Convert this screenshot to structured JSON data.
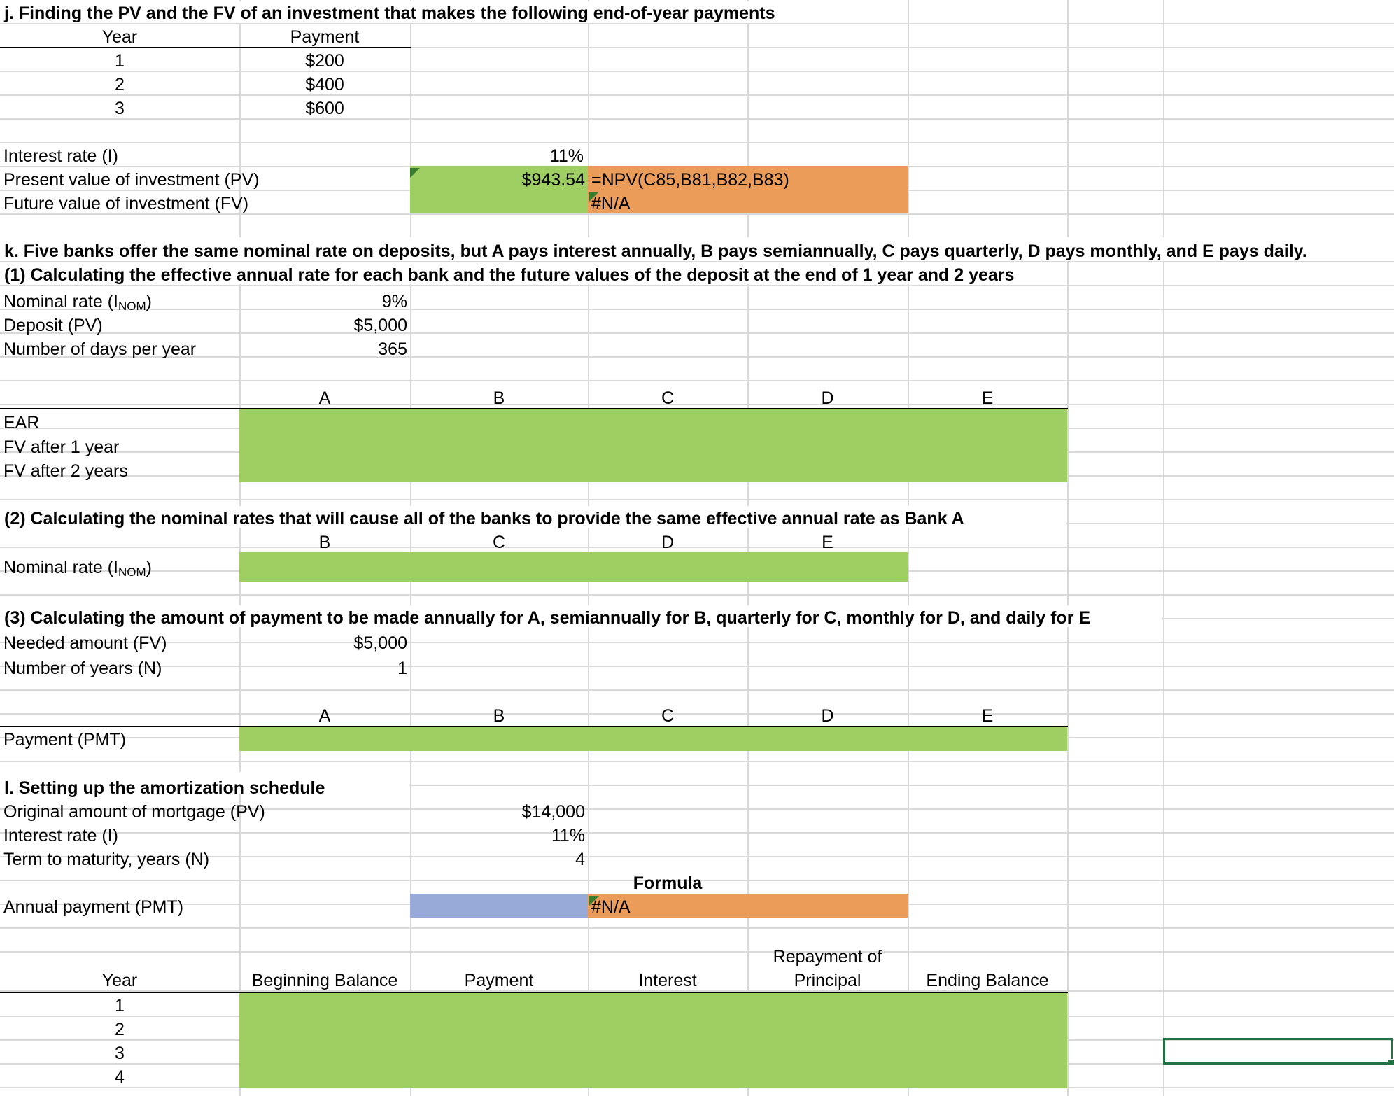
{
  "sheet": {
    "colors": {
      "green": "#9fcf63",
      "orange": "#eb9c59",
      "blue": "#98aad7",
      "gridline": "#d9d9d9",
      "selection": "#217346"
    },
    "j": {
      "title": "j.  Finding the PV and the FV of an investment that makes the following end-of-year payments",
      "year_header": "Year",
      "payment_header": "Payment",
      "rows": [
        {
          "year": "1",
          "payment": "$200"
        },
        {
          "year": "2",
          "payment": "$400"
        },
        {
          "year": "3",
          "payment": "$600"
        }
      ],
      "interest_label": "Interest rate (I)",
      "interest_value": "11%",
      "pv_label": "Present value of investment (PV)",
      "pv_value": "$943.54",
      "pv_formula": "=NPV(C85,B81,B82,B83)",
      "fv_label": "Future value of investment (FV)",
      "fv_value": "#N/A"
    },
    "k": {
      "title": "k.  Five banks offer the same nominal rate on deposits, but A pays interest annually, B pays semiannually, C pays quarterly, D pays monthly, and E pays daily.",
      "part1_title": "(1)  Calculating the effective annual rate for each bank and the future values of the deposit at the end of 1 year and 2 years",
      "nominal_label": "Nominal rate (I",
      "nominal_sub": "NOM",
      "nominal_close": ")",
      "nominal_value": "9%",
      "deposit_label": "Deposit (PV)",
      "deposit_value": "$5,000",
      "days_label": "Number of days per year",
      "days_value": "365",
      "banks": [
        "A",
        "B",
        "C",
        "D",
        "E"
      ],
      "ear_label": "EAR",
      "fv1_label": "FV after 1 year",
      "fv2_label": "FV after 2 years",
      "part2_title": "(2)  Calculating the nominal rates that will cause all of the banks to provide the same effective annual rate as Bank A",
      "part2_banks": [
        "B",
        "C",
        "D",
        "E"
      ],
      "part2_label": "Nominal rate (I",
      "part2_sub": "NOM",
      "part2_close": ")",
      "part3_title": "(3)  Calculating the amount of payment to be made annually for A, semiannually for B, quarterly for C, monthly for D, and daily for E",
      "needed_label": "Needed amount (FV)",
      "needed_value": "$5,000",
      "years_label": "Number of years (N)",
      "years_value": "1",
      "part3_banks": [
        "A",
        "B",
        "C",
        "D",
        "E"
      ],
      "pmt_label": "Payment (PMT)"
    },
    "l": {
      "title": "l.  Setting up the amortization schedule",
      "orig_label": "Original amount of mortgage (PV)",
      "orig_value": "$14,000",
      "rate_label": "Interest rate (I)",
      "rate_value": "11%",
      "term_label": "Term to maturity, years (N)",
      "term_value": "4",
      "formula_header": "Formula",
      "annual_label": "Annual payment (PMT)",
      "annual_formula_value": "#N/A",
      "headers": {
        "year": "Year",
        "beginning": "Beginning Balance",
        "payment": "Payment",
        "interest": "Interest",
        "repay_line1": "Repayment of",
        "repay_line2": "Principal",
        "ending": "Ending Balance"
      },
      "years": [
        "1",
        "2",
        "3",
        "4"
      ]
    }
  }
}
